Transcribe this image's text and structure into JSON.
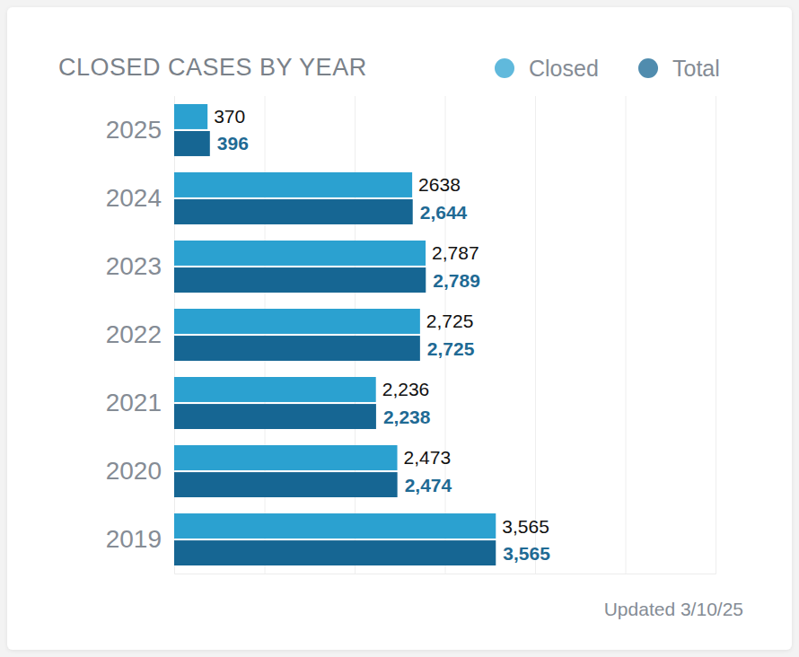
{
  "chart_data": {
    "type": "bar",
    "title": "CLOSED CASES BY YEAR",
    "annotations": [
      "Updated 3/10/25"
    ],
    "orientation": "horizontal",
    "categories": [
      "2025",
      "2024",
      "2023",
      "2022",
      "2021",
      "2020",
      "2019"
    ],
    "series": [
      {
        "name": "Closed",
        "color": "#2ba1d0",
        "values": [
          370,
          2638,
          2787,
          2725,
          2236,
          2473,
          3565
        ],
        "value_labels": [
          "370",
          "2638",
          "2,787",
          "2,725",
          "2,236",
          "2,473",
          "3,565"
        ]
      },
      {
        "name": "Total",
        "color": "#166693",
        "values": [
          396,
          2644,
          2789,
          2725,
          2238,
          2474,
          3565
        ],
        "value_labels": [
          "396",
          "2,644",
          "2,789",
          "2,725",
          "2,238",
          "2,474",
          "3,565"
        ]
      }
    ],
    "xlim": [
      0,
      6000
    ],
    "xticks": [
      0,
      1000,
      2000,
      3000,
      4000,
      5000,
      6000
    ],
    "grid": true,
    "tick_labels": "y",
    "data_labels": true,
    "legend": "top-right"
  }
}
